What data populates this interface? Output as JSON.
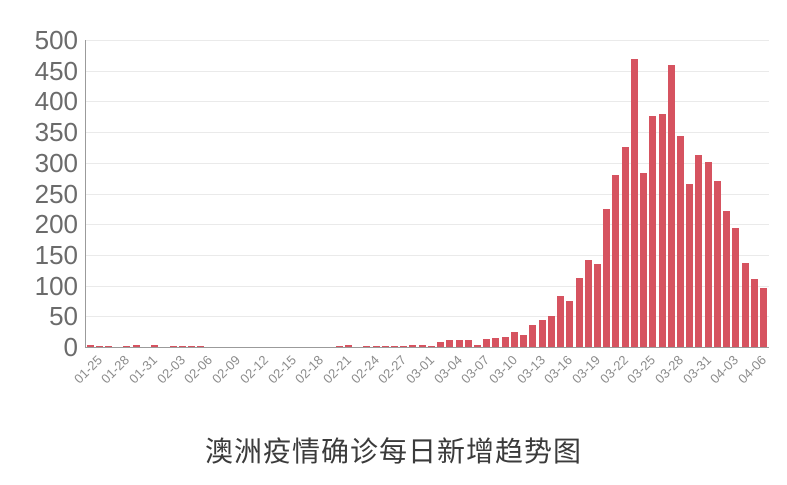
{
  "title": "澳洲疫情确诊每日新增趋势图",
  "colors": {
    "bar": "#d65360",
    "grid": "#eaeaea",
    "axis": "#9b9b9b",
    "y_label": "#6b6b6b",
    "x_label": "#8c8c8c",
    "title": "#3b3b3b",
    "background": "#ffffff"
  },
  "chart_data": {
    "type": "bar",
    "title": "澳洲疫情确诊每日新增趋势图",
    "xlabel": "",
    "ylabel": "",
    "ylim": [
      0,
      500
    ],
    "y_ticks": [
      0,
      50,
      100,
      150,
      200,
      250,
      300,
      350,
      400,
      450,
      500
    ],
    "grid": true,
    "legend": "none",
    "x_tick_every": 3,
    "categories": [
      "01-25",
      "01-26",
      "01-27",
      "01-28",
      "01-29",
      "01-30",
      "01-31",
      "02-01",
      "02-02",
      "02-03",
      "02-04",
      "02-05",
      "02-06",
      "02-07",
      "02-08",
      "02-09",
      "02-10",
      "02-11",
      "02-12",
      "02-13",
      "02-14",
      "02-15",
      "02-16",
      "02-17",
      "02-18",
      "02-19",
      "02-20",
      "02-21",
      "02-22",
      "02-23",
      "02-24",
      "02-25",
      "02-26",
      "02-27",
      "02-28",
      "02-29",
      "03-01",
      "03-02",
      "03-03",
      "03-04",
      "03-05",
      "03-06",
      "03-07",
      "03-08",
      "03-09",
      "03-10",
      "03-11",
      "03-12",
      "03-13",
      "03-14",
      "03-15",
      "03-16",
      "03-17",
      "03-18",
      "03-19",
      "03-20",
      "03-21",
      "03-22",
      "03-23",
      "03-24",
      "03-25",
      "03-26",
      "03-27",
      "03-28",
      "03-29",
      "03-30",
      "03-31",
      "04-01",
      "04-02",
      "04-03",
      "04-04",
      "04-05",
      "04-06",
      "04-07"
    ],
    "values": [
      4,
      1,
      2,
      0,
      2,
      3,
      0,
      3,
      0,
      1,
      2,
      1,
      2,
      0,
      0,
      0,
      0,
      0,
      0,
      0,
      0,
      0,
      0,
      0,
      0,
      0,
      0,
      2,
      4,
      0,
      2,
      2,
      2,
      1,
      2,
      3,
      3,
      2,
      8,
      11,
      12,
      11,
      4,
      13,
      15,
      17,
      25,
      20,
      36,
      44,
      50,
      83,
      75,
      112,
      142,
      135,
      225,
      280,
      326,
      469,
      283,
      376,
      379,
      460,
      344,
      266,
      312,
      302,
      271,
      221,
      193,
      137,
      111,
      96
    ]
  }
}
